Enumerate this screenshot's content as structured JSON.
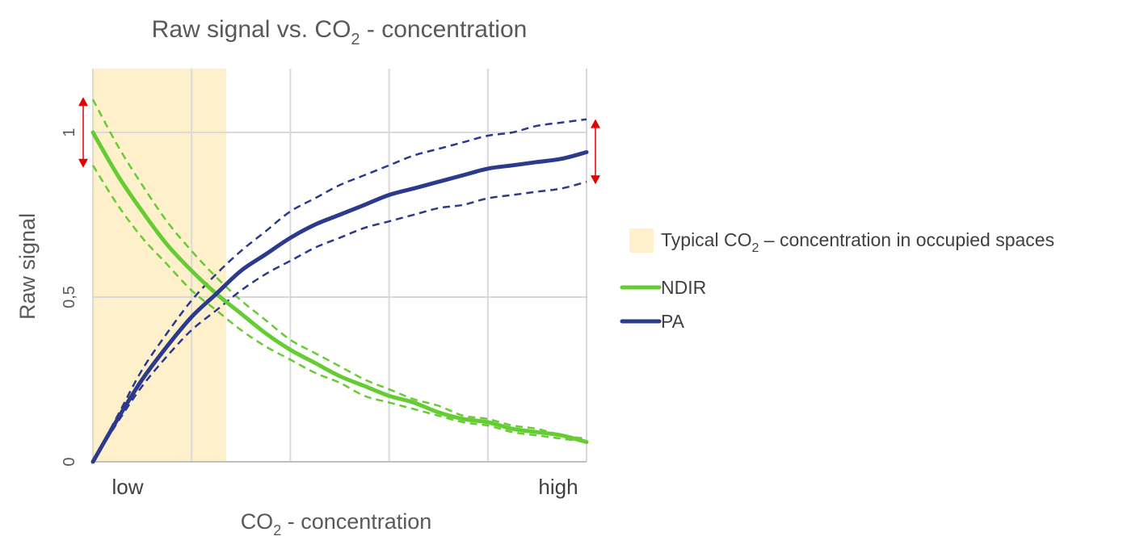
{
  "chart_data": {
    "type": "line",
    "title_main": "Raw signal vs. CO",
    "title_sub": "2",
    "title_rest": " - concentration",
    "xlabel_main": "CO",
    "xlabel_sub": "2",
    "xlabel_rest": " - concentration",
    "ylabel": "Raw signal",
    "x_tick_labels": [
      "low",
      "high"
    ],
    "y_tick_labels": [
      "0",
      "0,5",
      "1"
    ],
    "y_ticks": [
      0,
      0.5,
      1
    ],
    "xlim": [
      0,
      1
    ],
    "ylim": [
      0,
      1.2
    ],
    "grid": true,
    "legend_position": "right",
    "highlight_band": {
      "label_main": "Typical CO",
      "label_sub": "2",
      "label_rest": " – concentration in occupied spaces",
      "x_range": [
        0,
        0.27
      ],
      "color": "#fff0cc"
    },
    "series": [
      {
        "name": "NDIR",
        "color": "#66cc33",
        "x": [
          0,
          0.05,
          0.1,
          0.15,
          0.2,
          0.25,
          0.3,
          0.35,
          0.4,
          0.45,
          0.5,
          0.55,
          0.6,
          0.65,
          0.7,
          0.75,
          0.8,
          0.85,
          0.9,
          0.95,
          1.0
        ],
        "values": [
          1.0,
          0.87,
          0.76,
          0.66,
          0.58,
          0.51,
          0.45,
          0.39,
          0.34,
          0.3,
          0.26,
          0.23,
          0.2,
          0.18,
          0.15,
          0.13,
          0.12,
          0.1,
          0.09,
          0.08,
          0.06
        ],
        "upper": [
          1.1,
          0.96,
          0.84,
          0.73,
          0.64,
          0.56,
          0.49,
          0.43,
          0.37,
          0.33,
          0.29,
          0.25,
          0.22,
          0.19,
          0.17,
          0.14,
          0.13,
          0.11,
          0.1,
          0.08,
          0.07
        ],
        "lower": [
          0.9,
          0.78,
          0.68,
          0.6,
          0.52,
          0.46,
          0.4,
          0.35,
          0.31,
          0.27,
          0.24,
          0.2,
          0.18,
          0.16,
          0.14,
          0.12,
          0.11,
          0.09,
          0.08,
          0.07,
          0.06
        ],
        "variation_range": [
          0.9,
          1.1
        ]
      },
      {
        "name": "PA",
        "color": "#2b3a8c",
        "x": [
          0,
          0.05,
          0.1,
          0.15,
          0.2,
          0.25,
          0.3,
          0.35,
          0.4,
          0.45,
          0.5,
          0.55,
          0.6,
          0.65,
          0.7,
          0.75,
          0.8,
          0.85,
          0.9,
          0.95,
          1.0
        ],
        "values": [
          0.0,
          0.13,
          0.25,
          0.35,
          0.44,
          0.51,
          0.58,
          0.63,
          0.68,
          0.72,
          0.75,
          0.78,
          0.81,
          0.83,
          0.85,
          0.87,
          0.89,
          0.9,
          0.91,
          0.92,
          0.94
        ],
        "upper": [
          0.0,
          0.14,
          0.28,
          0.39,
          0.49,
          0.57,
          0.64,
          0.7,
          0.76,
          0.8,
          0.84,
          0.87,
          0.9,
          0.93,
          0.95,
          0.97,
          0.99,
          1.0,
          1.02,
          1.03,
          1.04
        ],
        "lower": [
          0.0,
          0.12,
          0.23,
          0.32,
          0.4,
          0.46,
          0.52,
          0.57,
          0.61,
          0.65,
          0.68,
          0.71,
          0.73,
          0.75,
          0.77,
          0.78,
          0.8,
          0.81,
          0.82,
          0.83,
          0.85
        ],
        "variation_range": [
          0.85,
          1.04
        ]
      }
    ],
    "arrow_color": "#e60000"
  }
}
